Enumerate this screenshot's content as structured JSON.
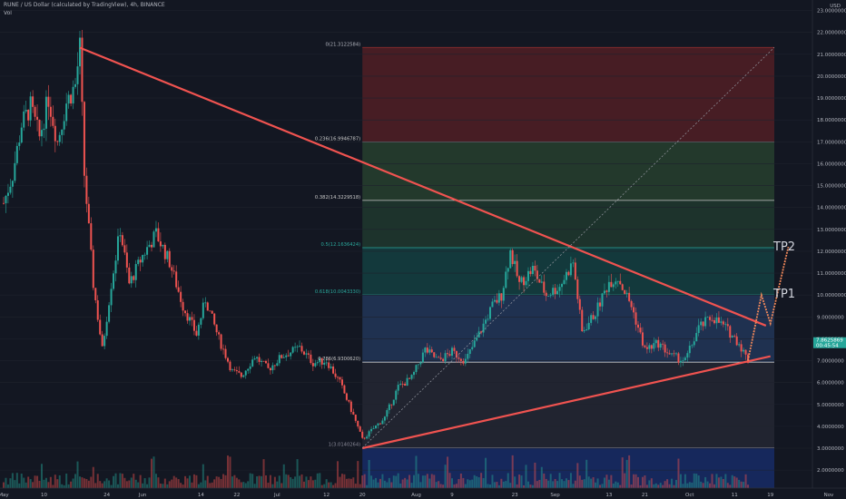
{
  "header": {
    "symbol": "RUNE / US Dollar (calculated by TradingView), 4h, BINANCE",
    "indicator": "Vol"
  },
  "currency": "USD",
  "colors": {
    "background": "#131722",
    "candle_up": "#26a69a",
    "candle_down": "#ef5350",
    "trendline": "#f05350",
    "fib_line": "#787b86"
  },
  "price_tag": {
    "price": "7.8625869",
    "countdown": "00:45:54"
  },
  "targets": [
    {
      "label": "TP2",
      "price": 12.1636
    },
    {
      "label": "TP1",
      "price": 10.0043
    }
  ],
  "chart_data": {
    "type": "candlestick",
    "ylim": [
      1.0,
      23.0
    ],
    "y_ticks": [
      "23.0000000",
      "22.0000000",
      "21.0000000",
      "20.0000000",
      "19.0000000",
      "18.0000000",
      "17.0000000",
      "16.0000000",
      "15.0000000",
      "14.0000000",
      "13.0000000",
      "12.0000000",
      "11.0000000",
      "10.0000000",
      "9.0000000",
      "8.0000000",
      "7.0000000",
      "6.0000000",
      "5.0000000",
      "4.0000000",
      "3.0000000",
      "2.0000000"
    ],
    "x_ticks": [
      {
        "label": "May",
        "date": "2021-05-01"
      },
      {
        "label": "10",
        "date": "2021-05-10"
      },
      {
        "label": "24",
        "date": "2021-05-24"
      },
      {
        "label": "Jun",
        "date": "2021-06-01"
      },
      {
        "label": "14",
        "date": "2021-06-14"
      },
      {
        "label": "22",
        "date": "2021-06-22"
      },
      {
        "label": "Jul",
        "date": "2021-07-01"
      },
      {
        "label": "12",
        "date": "2021-07-12"
      },
      {
        "label": "20",
        "date": "2021-07-20"
      },
      {
        "label": "Aug",
        "date": "2021-08-01"
      },
      {
        "label": "9",
        "date": "2021-08-09"
      },
      {
        "label": "23",
        "date": "2021-08-23"
      },
      {
        "label": "Sep",
        "date": "2021-09-01"
      },
      {
        "label": "13",
        "date": "2021-09-13"
      },
      {
        "label": "21",
        "date": "2021-09-21"
      },
      {
        "label": "Oct",
        "date": "2021-10-01"
      },
      {
        "label": "11",
        "date": "2021-10-11"
      },
      {
        "label": "19",
        "date": "2021-10-19"
      },
      {
        "label": "Nov",
        "date": "2021-11-01"
      }
    ],
    "price_path": [
      {
        "date": "2021-05-01",
        "close": 14.2
      },
      {
        "date": "2021-05-03",
        "close": 15.5
      },
      {
        "date": "2021-05-05",
        "close": 17.8
      },
      {
        "date": "2021-05-07",
        "close": 18.6
      },
      {
        "date": "2021-05-09",
        "close": 17.2
      },
      {
        "date": "2021-05-11",
        "close": 19.0
      },
      {
        "date": "2021-05-13",
        "close": 17.0
      },
      {
        "date": "2021-05-15",
        "close": 18.8
      },
      {
        "date": "2021-05-17",
        "close": 19.6
      },
      {
        "date": "2021-05-18",
        "close": 21.3
      },
      {
        "date": "2021-05-19",
        "close": 15.5
      },
      {
        "date": "2021-05-20",
        "close": 13.0
      },
      {
        "date": "2021-05-21",
        "close": 10.5
      },
      {
        "date": "2021-05-23",
        "close": 7.5
      },
      {
        "date": "2021-05-25",
        "close": 10.5
      },
      {
        "date": "2021-05-27",
        "close": 13.0
      },
      {
        "date": "2021-05-29",
        "close": 10.5
      },
      {
        "date": "2021-06-01",
        "close": 11.8
      },
      {
        "date": "2021-06-04",
        "close": 12.8
      },
      {
        "date": "2021-06-07",
        "close": 11.5
      },
      {
        "date": "2021-06-10",
        "close": 9.5
      },
      {
        "date": "2021-06-13",
        "close": 8.2
      },
      {
        "date": "2021-06-15",
        "close": 9.8
      },
      {
        "date": "2021-06-18",
        "close": 8.0
      },
      {
        "date": "2021-06-21",
        "close": 6.5
      },
      {
        "date": "2021-06-23",
        "close": 6.3
      },
      {
        "date": "2021-06-26",
        "close": 7.2
      },
      {
        "date": "2021-06-29",
        "close": 6.6
      },
      {
        "date": "2021-07-02",
        "close": 7.2
      },
      {
        "date": "2021-07-06",
        "close": 7.6
      },
      {
        "date": "2021-07-09",
        "close": 6.9
      },
      {
        "date": "2021-07-12",
        "close": 7.0
      },
      {
        "date": "2021-07-15",
        "close": 6.0
      },
      {
        "date": "2021-07-18",
        "close": 4.5
      },
      {
        "date": "2021-07-20",
        "close": 3.4
      },
      {
        "date": "2021-07-22",
        "close": 3.8
      },
      {
        "date": "2021-07-25",
        "close": 4.4
      },
      {
        "date": "2021-07-28",
        "close": 5.8
      },
      {
        "date": "2021-07-31",
        "close": 6.2
      },
      {
        "date": "2021-08-03",
        "close": 7.5
      },
      {
        "date": "2021-08-06",
        "close": 7.0
      },
      {
        "date": "2021-08-09",
        "close": 7.4
      },
      {
        "date": "2021-08-12",
        "close": 7.0
      },
      {
        "date": "2021-08-15",
        "close": 8.2
      },
      {
        "date": "2021-08-18",
        "close": 9.5
      },
      {
        "date": "2021-08-20",
        "close": 10.0
      },
      {
        "date": "2021-08-22",
        "close": 12.0
      },
      {
        "date": "2021-08-24",
        "close": 10.5
      },
      {
        "date": "2021-08-27",
        "close": 11.2
      },
      {
        "date": "2021-08-30",
        "close": 10.0
      },
      {
        "date": "2021-09-02",
        "close": 10.4
      },
      {
        "date": "2021-09-05",
        "close": 11.5
      },
      {
        "date": "2021-09-07",
        "close": 8.3
      },
      {
        "date": "2021-09-10",
        "close": 9.2
      },
      {
        "date": "2021-09-13",
        "close": 10.6
      },
      {
        "date": "2021-09-15",
        "close": 10.8
      },
      {
        "date": "2021-09-18",
        "close": 9.5
      },
      {
        "date": "2021-09-21",
        "close": 7.5
      },
      {
        "date": "2021-09-24",
        "close": 7.8
      },
      {
        "date": "2021-09-27",
        "close": 7.2
      },
      {
        "date": "2021-09-30",
        "close": 7.0
      },
      {
        "date": "2021-10-03",
        "close": 8.5
      },
      {
        "date": "2021-10-06",
        "close": 9.0
      },
      {
        "date": "2021-10-09",
        "close": 8.5
      },
      {
        "date": "2021-10-12",
        "close": 7.8
      },
      {
        "date": "2021-10-14",
        "close": 7.0
      }
    ],
    "fib_levels": [
      {
        "ratio": "0",
        "price": "21.3122584"
      },
      {
        "ratio": "0.236",
        "price": "16.9946787"
      },
      {
        "ratio": "0.382",
        "price": "14.3229518"
      },
      {
        "ratio": "0.5",
        "price": "12.1636424"
      },
      {
        "ratio": "0.618",
        "price": "10.0043330"
      },
      {
        "ratio": "0.786",
        "price": "6.9300620"
      },
      {
        "ratio": "1",
        "price": "3.0140264"
      }
    ],
    "trendlines": [
      {
        "name": "resistance",
        "from": {
          "date": "2021-05-18",
          "price": 21.3
        },
        "to": {
          "date": "2021-10-18",
          "price": 8.6
        }
      },
      {
        "name": "support",
        "from": {
          "date": "2021-07-20",
          "price": 3.0
        },
        "to": {
          "date": "2021-10-19",
          "price": 7.2
        }
      }
    ],
    "projection": [
      {
        "date": "2021-10-14",
        "price": 7.0
      },
      {
        "date": "2021-10-17",
        "price": 10.0
      },
      {
        "date": "2021-10-19",
        "price": 8.7
      },
      {
        "date": "2021-10-23",
        "price": 12.2
      }
    ]
  }
}
